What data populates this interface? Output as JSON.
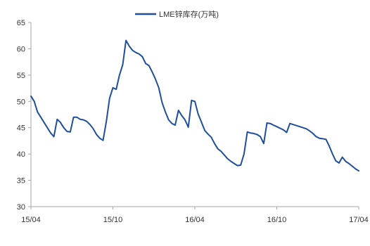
{
  "chart_data": {
    "type": "line",
    "title": "",
    "xlabel": "",
    "ylabel": "",
    "ylim": [
      30,
      65
    ],
    "yticks": [
      30,
      35,
      40,
      45,
      50,
      55,
      60,
      65
    ],
    "x_ticks": [
      "15/04",
      "15/10",
      "16/04",
      "16/10",
      "17/04"
    ],
    "grid": false,
    "legend_position": "top-center",
    "colors": {
      "series": "#1f4e9c",
      "axis": "#a6a6a6"
    },
    "series": [
      {
        "name": "LME锌库存(万吨)",
        "values": [
          51.0,
          50.0,
          48.0,
          47.0,
          46.0,
          45.0,
          44.0,
          43.3,
          46.6,
          46.0,
          45.0,
          44.3,
          44.2,
          47.0,
          47.0,
          46.6,
          46.5,
          46.2,
          45.6,
          44.8,
          43.7,
          43.0,
          42.6,
          46.2,
          50.6,
          52.6,
          52.3,
          55.0,
          57.0,
          61.6,
          60.5,
          59.7,
          59.3,
          59.0,
          58.5,
          57.2,
          56.8,
          55.6,
          54.2,
          52.6,
          49.8,
          48.0,
          46.5,
          45.8,
          45.5,
          48.3,
          47.3,
          46.5,
          45.1,
          50.2,
          50.0,
          47.6,
          46.1,
          44.5,
          43.8,
          43.2,
          42.0,
          41.0,
          40.5,
          39.8,
          39.1,
          38.6,
          38.2,
          37.8,
          37.9,
          40.0,
          44.2,
          44.0,
          43.9,
          43.7,
          43.3,
          42.0,
          45.9,
          45.8,
          45.5,
          45.2,
          44.9,
          44.6,
          44.1,
          45.8,
          45.6,
          45.4,
          45.2,
          45.0,
          44.8,
          44.4,
          43.9,
          43.3,
          43.0,
          42.9,
          42.8,
          41.5,
          40.0,
          38.7,
          38.3,
          39.4,
          38.6,
          38.2,
          37.7,
          37.2,
          36.8
        ]
      }
    ]
  }
}
